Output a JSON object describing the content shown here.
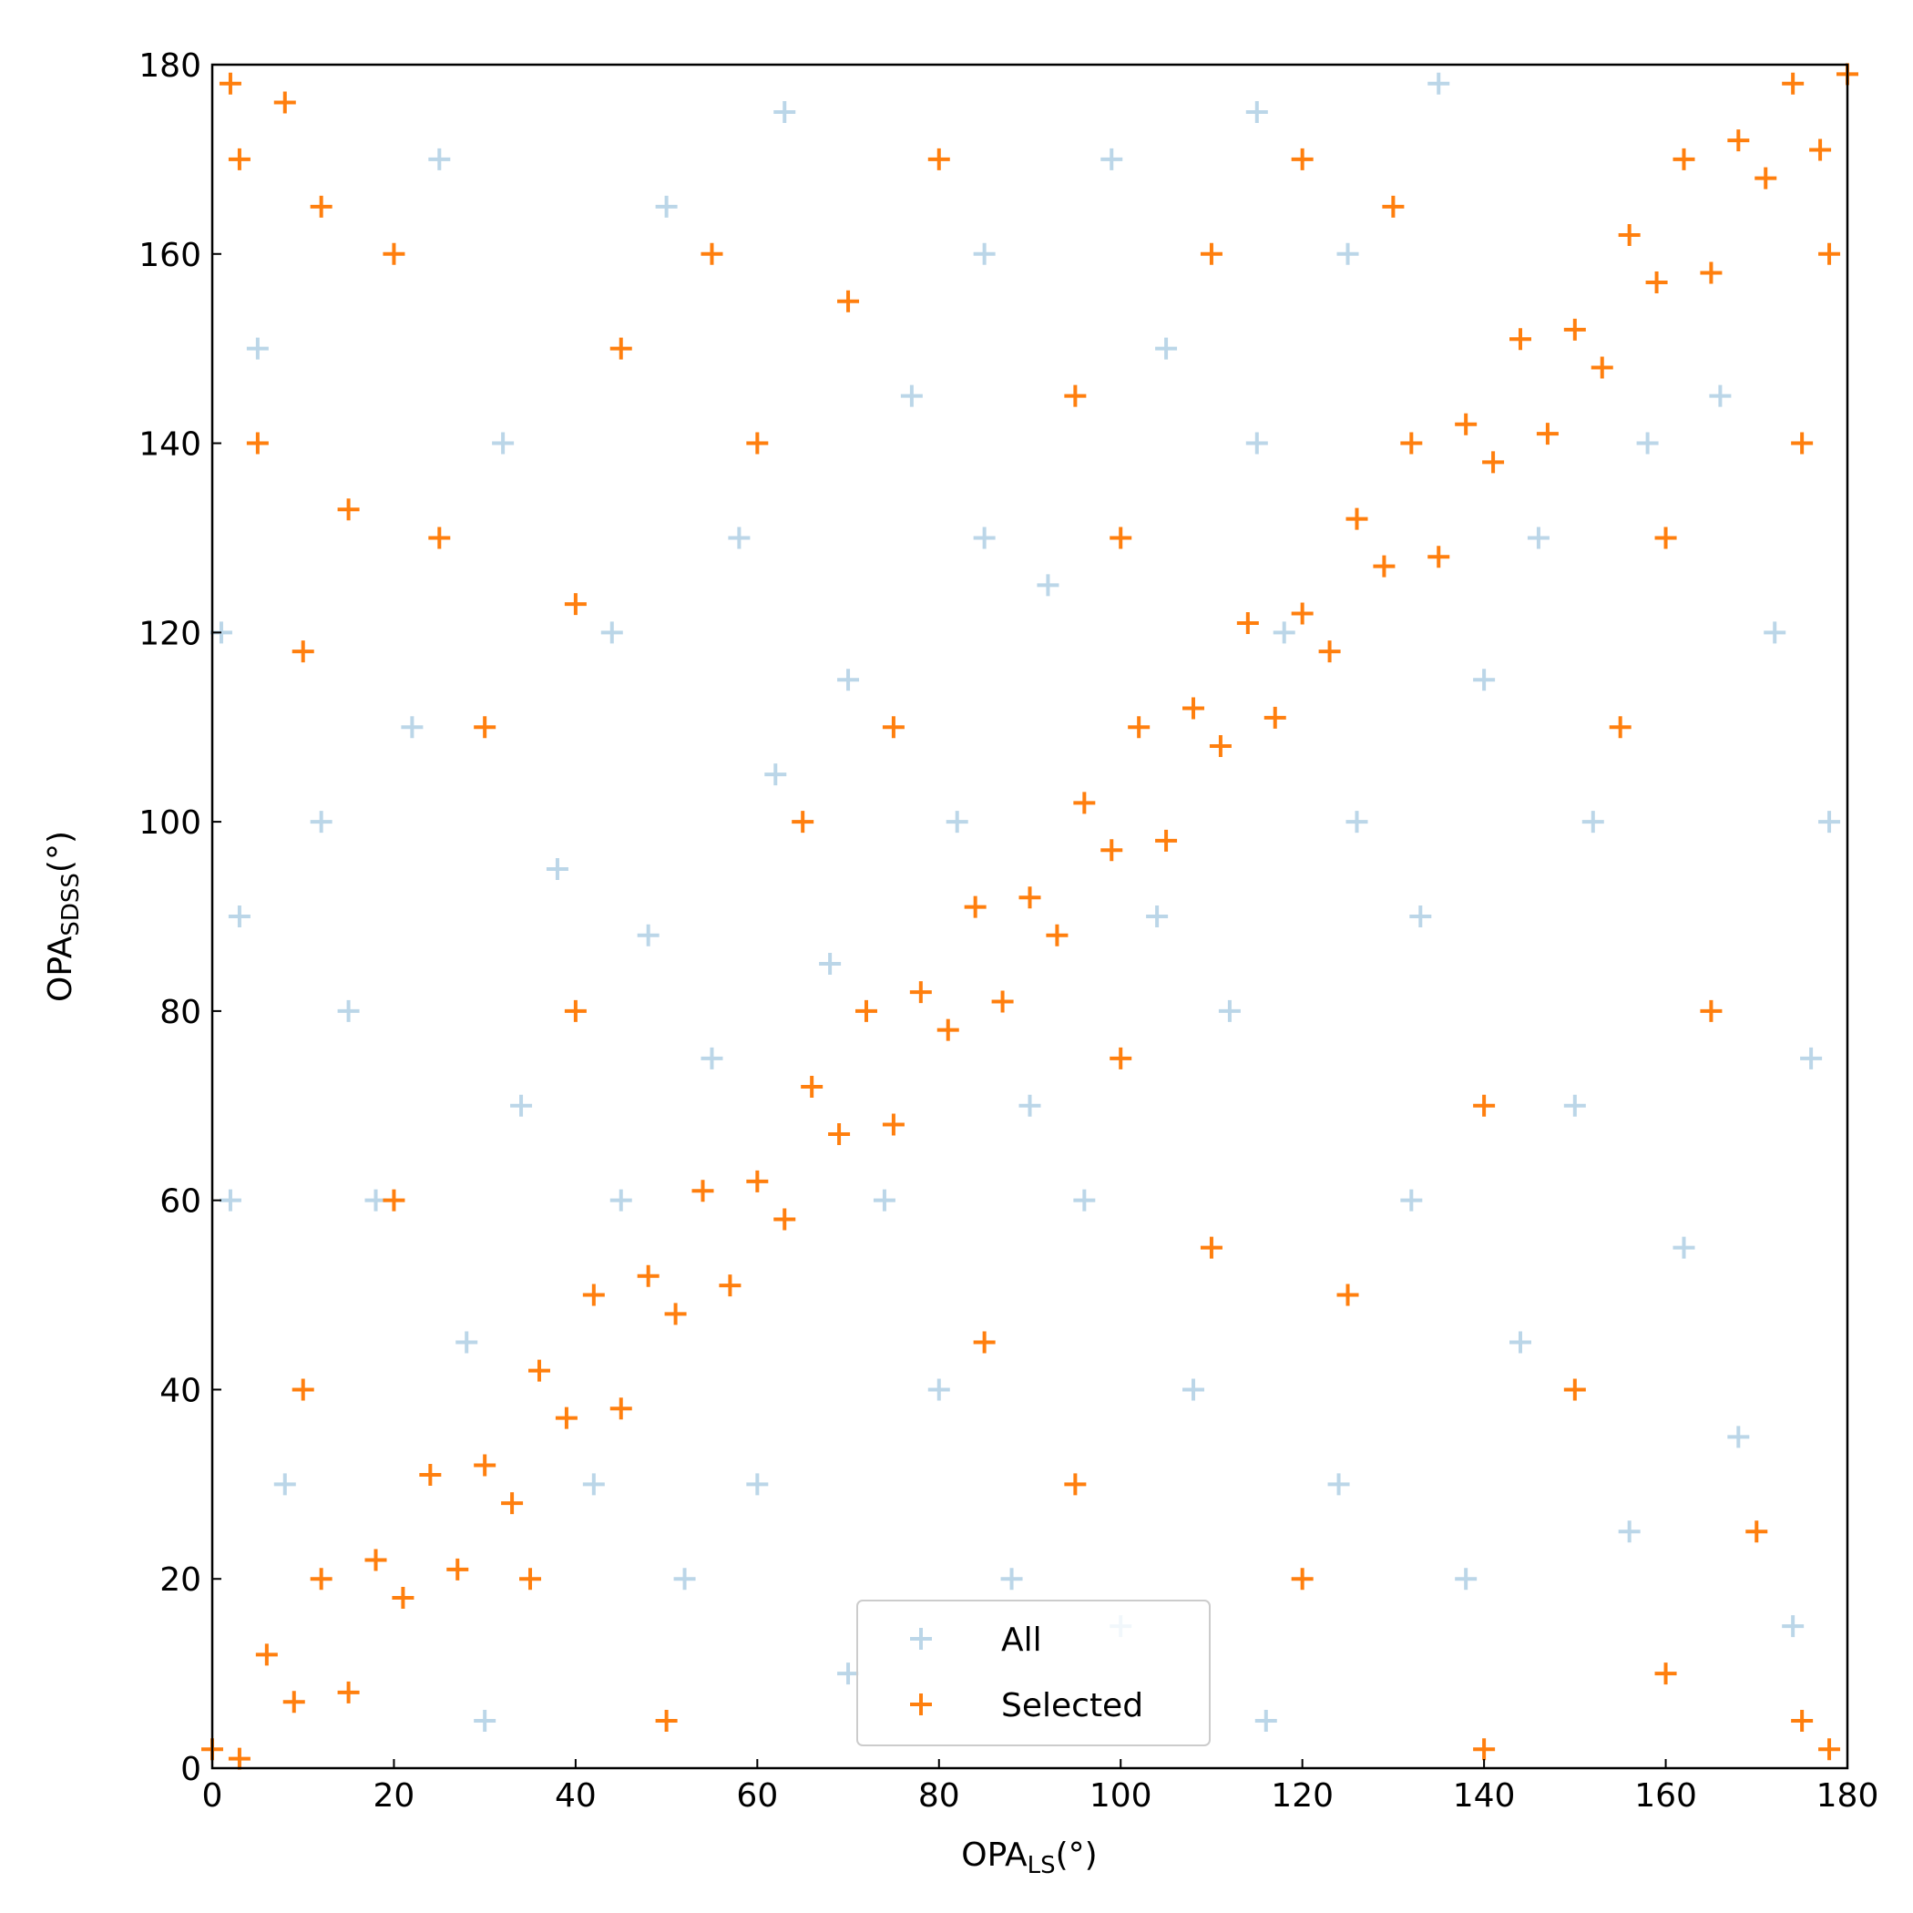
{
  "chart_data": {
    "type": "scatter",
    "xlabel": [
      "OPA",
      "LS",
      "(°)"
    ],
    "ylabel": [
      "OPA",
      "SDSS",
      "(°)"
    ],
    "xlim": [
      0,
      180
    ],
    "ylim": [
      0,
      180
    ],
    "xticks": [
      0,
      20,
      40,
      60,
      80,
      100,
      120,
      140,
      160,
      180
    ],
    "yticks": [
      0,
      20,
      40,
      60,
      80,
      100,
      120,
      140,
      160,
      180
    ],
    "legend": "lower center",
    "series": [
      {
        "name": "All",
        "color": "#1f77b4",
        "alpha": 0.3,
        "x": [
          5,
          12,
          18,
          25,
          32,
          38,
          44,
          50,
          58,
          63,
          70,
          77,
          85,
          92,
          99,
          105,
          115,
          125,
          135,
          8,
          15,
          28,
          22,
          34,
          42,
          48,
          55,
          62,
          68,
          74,
          82,
          90,
          96,
          104,
          112,
          118,
          126,
          133,
          140,
          146,
          152,
          158,
          166,
          172,
          178,
          60,
          70,
          80,
          88,
          100,
          108,
          116,
          124,
          132,
          138,
          144,
          150,
          156,
          162,
          168,
          174,
          176,
          3,
          2,
          1,
          52,
          30,
          45,
          115,
          85
        ],
        "values": [
          150,
          100,
          60,
          170,
          140,
          95,
          120,
          165,
          130,
          175,
          115,
          145,
          160,
          125,
          170,
          150,
          175,
          160,
          178,
          30,
          80,
          45,
          110,
          70,
          30,
          88,
          75,
          105,
          85,
          60,
          100,
          70,
          60,
          90,
          80,
          120,
          100,
          90,
          115,
          130,
          100,
          140,
          145,
          120,
          100,
          30,
          10,
          40,
          20,
          15,
          40,
          5,
          30,
          60,
          20,
          45,
          70,
          25,
          55,
          35,
          15,
          75,
          90,
          60,
          120,
          20,
          5,
          60,
          140,
          130
        ]
      },
      {
        "name": "Selected",
        "color": "#ff7f0e",
        "alpha": 1,
        "x": [
          0,
          3,
          6,
          9,
          12,
          15,
          18,
          21,
          24,
          27,
          30,
          33,
          36,
          39,
          42,
          45,
          48,
          51,
          54,
          57,
          60,
          63,
          66,
          69,
          72,
          75,
          78,
          81,
          84,
          87,
          90,
          93,
          96,
          99,
          102,
          105,
          108,
          111,
          114,
          117,
          120,
          123,
          126,
          129,
          132,
          135,
          138,
          141,
          144,
          147,
          150,
          153,
          156,
          159,
          162,
          165,
          168,
          171,
          174,
          177,
          180,
          3,
          8,
          12,
          20,
          5,
          15,
          25,
          10,
          30,
          40,
          45,
          55,
          60,
          70,
          80,
          65,
          75,
          95,
          110,
          120,
          130,
          100,
          40,
          20,
          10,
          35,
          50,
          85,
          95,
          110,
          120,
          140,
          150,
          160,
          170,
          175,
          165,
          155,
          140,
          125,
          100,
          175,
          160,
          178,
          2,
          178
        ],
        "values": [
          2,
          1,
          12,
          7,
          20,
          8,
          22,
          18,
          31,
          21,
          32,
          28,
          42,
          37,
          50,
          38,
          52,
          48,
          61,
          51,
          62,
          58,
          72,
          67,
          80,
          68,
          82,
          78,
          91,
          81,
          92,
          88,
          102,
          97,
          110,
          98,
          112,
          108,
          121,
          111,
          122,
          118,
          132,
          127,
          140,
          128,
          142,
          138,
          151,
          141,
          152,
          148,
          162,
          157,
          170,
          158,
          172,
          168,
          178,
          171,
          179,
          170,
          176,
          165,
          160,
          140,
          133,
          130,
          118,
          110,
          123,
          150,
          160,
          140,
          155,
          170,
          100,
          110,
          145,
          160,
          170,
          165,
          130,
          80,
          60,
          40,
          20,
          5,
          45,
          30,
          55,
          20,
          2,
          40,
          10,
          25,
          5,
          80,
          110,
          70,
          50,
          75,
          140,
          130,
          160,
          178,
          2
        ]
      }
    ]
  }
}
